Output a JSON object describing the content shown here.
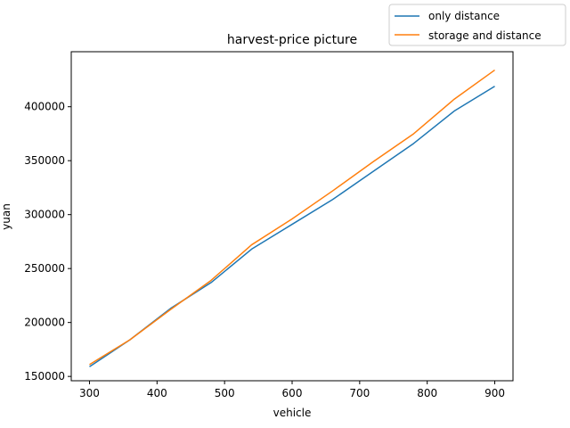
{
  "chart_data": {
    "type": "line",
    "title": "harvest-price picture",
    "xlabel": "vehicle",
    "ylabel": "yuan",
    "xlim": [
      273,
      927
    ],
    "ylim": [
      146000,
      451000
    ],
    "x_ticks": [
      300,
      400,
      500,
      600,
      700,
      800,
      900
    ],
    "y_ticks": [
      150000,
      200000,
      250000,
      300000,
      350000,
      400000
    ],
    "legend_location": "top-right",
    "grid": false,
    "series": [
      {
        "name": "only distance",
        "color": "#1f77b4",
        "x": [
          300,
          360,
          420,
          480,
          540,
          600,
          660,
          720,
          780,
          840,
          900
        ],
        "y": [
          159000,
          184000,
          213000,
          237000,
          268000,
          291000,
          314000,
          340000,
          366000,
          396000,
          419000
        ]
      },
      {
        "name": "storage and distance",
        "color": "#ff7f0e",
        "x": [
          300,
          360,
          420,
          480,
          540,
          600,
          660,
          720,
          780,
          840,
          900
        ],
        "y": [
          161000,
          184000,
          212000,
          239000,
          272000,
          296000,
          322000,
          349000,
          375000,
          407000,
          434000
        ]
      }
    ]
  }
}
